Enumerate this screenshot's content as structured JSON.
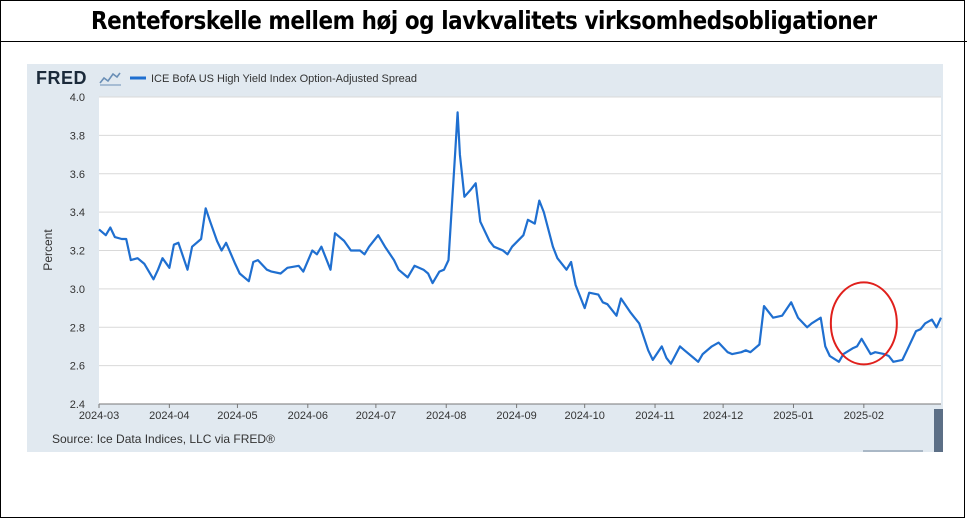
{
  "page_title": "Renteforskelle mellem høj og lavkvalitets virksomhedsobligationer",
  "logo": {
    "text": "FRED",
    "icon": "fred-sparkline-icon"
  },
  "source": "Source: Ice Data Indices, LLC via FRED®",
  "colors": {
    "line": "#1f6fd0",
    "panel": "#e1e9f0",
    "plot": "#ffffff",
    "circle": "#e0201c"
  },
  "annotation": {
    "type": "circle",
    "around_date": "2025-02-01",
    "around_value": 2.82
  },
  "chart_data": {
    "type": "line",
    "title": "",
    "ylabel": "Percent",
    "xlabel": "",
    "ylim": [
      2.4,
      4.0
    ],
    "yticks": [
      2.4,
      2.6,
      2.8,
      3.0,
      3.2,
      3.4,
      3.6,
      3.8,
      4.0
    ],
    "xtick_labels": [
      "2024-03",
      "2024-04",
      "2024-05",
      "2024-06",
      "2024-07",
      "2024-08",
      "2024-09",
      "2024-10",
      "2024-11",
      "2024-12",
      "2025-01",
      "2025-02"
    ],
    "x_range": [
      "2024-03-01",
      "2025-03-07"
    ],
    "grid": true,
    "legend": "top-left",
    "series": [
      {
        "name": "ICE BofA US High Yield Index Option-Adjusted Spread",
        "x": [
          "2024-03-01",
          "2024-03-04",
          "2024-03-06",
          "2024-03-08",
          "2024-03-11",
          "2024-03-13",
          "2024-03-15",
          "2024-03-18",
          "2024-03-21",
          "2024-03-25",
          "2024-03-27",
          "2024-03-29",
          "2024-04-01",
          "2024-04-03",
          "2024-04-05",
          "2024-04-09",
          "2024-04-11",
          "2024-04-15",
          "2024-04-17",
          "2024-04-19",
          "2024-04-22",
          "2024-04-24",
          "2024-04-26",
          "2024-04-30",
          "2024-05-02",
          "2024-05-06",
          "2024-05-08",
          "2024-05-10",
          "2024-05-14",
          "2024-05-16",
          "2024-05-20",
          "2024-05-23",
          "2024-05-28",
          "2024-05-30",
          "2024-06-03",
          "2024-06-05",
          "2024-06-07",
          "2024-06-11",
          "2024-06-13",
          "2024-06-17",
          "2024-06-20",
          "2024-06-24",
          "2024-06-26",
          "2024-06-28",
          "2024-07-02",
          "2024-07-05",
          "2024-07-09",
          "2024-07-11",
          "2024-07-15",
          "2024-07-18",
          "2024-07-22",
          "2024-07-24",
          "2024-07-26",
          "2024-07-29",
          "2024-07-31",
          "2024-08-02",
          "2024-08-05",
          "2024-08-06",
          "2024-08-07",
          "2024-08-09",
          "2024-08-12",
          "2024-08-14",
          "2024-08-16",
          "2024-08-20",
          "2024-08-22",
          "2024-08-26",
          "2024-08-28",
          "2024-08-30",
          "2024-09-04",
          "2024-09-06",
          "2024-09-09",
          "2024-09-11",
          "2024-09-13",
          "2024-09-17",
          "2024-09-19",
          "2024-09-23",
          "2024-09-25",
          "2024-09-27",
          "2024-10-01",
          "2024-10-03",
          "2024-10-07",
          "2024-10-09",
          "2024-10-11",
          "2024-10-15",
          "2024-10-17",
          "2024-10-21",
          "2024-10-23",
          "2024-10-25",
          "2024-10-29",
          "2024-10-31",
          "2024-11-04",
          "2024-11-06",
          "2024-11-08",
          "2024-11-12",
          "2024-11-14",
          "2024-11-18",
          "2024-11-20",
          "2024-11-22",
          "2024-11-26",
          "2024-11-29",
          "2024-12-03",
          "2024-12-05",
          "2024-12-09",
          "2024-12-11",
          "2024-12-13",
          "2024-12-17",
          "2024-12-19",
          "2024-12-23",
          "2024-12-27",
          "2024-12-31",
          "2025-01-03",
          "2025-01-07",
          "2025-01-09",
          "2025-01-13",
          "2025-01-15",
          "2025-01-17",
          "2025-01-21",
          "2025-01-23",
          "2025-01-27",
          "2025-01-29",
          "2025-01-31",
          "2025-02-04",
          "2025-02-06",
          "2025-02-10",
          "2025-02-12",
          "2025-02-14",
          "2025-02-18",
          "2025-02-20",
          "2025-02-24",
          "2025-02-26",
          "2025-02-28",
          "2025-03-03",
          "2025-03-05",
          "2025-03-07"
        ],
        "y": [
          3.31,
          3.28,
          3.32,
          3.27,
          3.26,
          3.26,
          3.15,
          3.16,
          3.13,
          3.05,
          3.1,
          3.16,
          3.11,
          3.23,
          3.24,
          3.1,
          3.22,
          3.26,
          3.42,
          3.35,
          3.25,
          3.2,
          3.24,
          3.13,
          3.08,
          3.04,
          3.14,
          3.15,
          3.1,
          3.09,
          3.08,
          3.11,
          3.12,
          3.09,
          3.2,
          3.18,
          3.22,
          3.1,
          3.29,
          3.25,
          3.2,
          3.2,
          3.18,
          3.22,
          3.28,
          3.22,
          3.15,
          3.1,
          3.06,
          3.12,
          3.1,
          3.08,
          3.03,
          3.09,
          3.1,
          3.15,
          3.72,
          3.92,
          3.7,
          3.48,
          3.52,
          3.55,
          3.35,
          3.25,
          3.22,
          3.2,
          3.18,
          3.22,
          3.28,
          3.36,
          3.34,
          3.46,
          3.4,
          3.22,
          3.16,
          3.1,
          3.14,
          3.02,
          2.9,
          2.98,
          2.97,
          2.93,
          2.92,
          2.86,
          2.95,
          2.88,
          2.85,
          2.82,
          2.68,
          2.63,
          2.7,
          2.64,
          2.61,
          2.7,
          2.68,
          2.64,
          2.62,
          2.66,
          2.7,
          2.72,
          2.67,
          2.66,
          2.67,
          2.68,
          2.67,
          2.71,
          2.91,
          2.85,
          2.86,
          2.93,
          2.85,
          2.8,
          2.82,
          2.85,
          2.7,
          2.65,
          2.62,
          2.66,
          2.69,
          2.7,
          2.74,
          2.66,
          2.67,
          2.66,
          2.65,
          2.62,
          2.63,
          2.68,
          2.78,
          2.79,
          2.82,
          2.84,
          2.8,
          2.85
        ]
      }
    ]
  }
}
